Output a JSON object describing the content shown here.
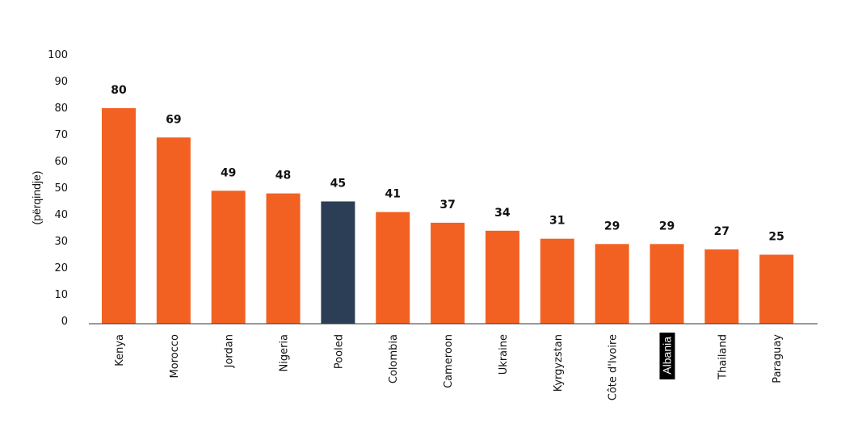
{
  "chart_data": {
    "type": "bar",
    "title": "",
    "xlabel": "",
    "ylabel": "(përqindje)",
    "ylim": [
      0,
      100
    ],
    "yticks": [
      0,
      10,
      20,
      30,
      40,
      50,
      60,
      70,
      80,
      90,
      100
    ],
    "grid": false,
    "categories": [
      "Kenya",
      "Morocco",
      "Jordan",
      "Nigeria",
      "Pooled",
      "Colombia",
      "Cameroon",
      "Ukraine",
      "Kyrgyzstan",
      "Côte d'Ivoire",
      "Albania",
      "Thailand",
      "Paraguay"
    ],
    "values": [
      80,
      69,
      49,
      48,
      45,
      41,
      37,
      34,
      31,
      29,
      29,
      27,
      25
    ],
    "data_labels": [
      "80",
      "69",
      "49",
      "48",
      "45",
      "41",
      "37",
      "34",
      "31",
      "29",
      "29",
      "27",
      "25"
    ],
    "colors": {
      "default": "#f26122",
      "highlight": "#2b3e55",
      "axis": "#333333",
      "label_highlight_bg": "#000000"
    },
    "highlight_category": "Pooled",
    "highlight_label_category": "Albania"
  }
}
